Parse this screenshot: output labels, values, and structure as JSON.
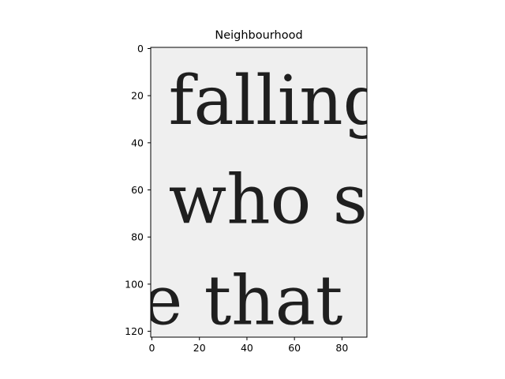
{
  "chart_data": {
    "type": "image",
    "title": "Neighbourhood",
    "xlabel": "",
    "ylabel": "",
    "image_width": 91,
    "image_height": 123,
    "xlim": [
      -0.5,
      90.5
    ],
    "ylim": [
      122.5,
      -0.5
    ],
    "y_inverted": true,
    "xticks": [
      0,
      20,
      40,
      60,
      80
    ],
    "yticks": [
      0,
      20,
      40,
      60,
      80,
      100,
      120
    ],
    "grid": false,
    "colormap": "gray",
    "background_color": "#efefef",
    "ink_color": "#1f1f1f",
    "text_lines": [
      {
        "text": "falling",
        "x": 7,
        "y": 32
      },
      {
        "text": "who s",
        "x": 7,
        "y": 74
      },
      {
        "text": "e that",
        "x": -4,
        "y": 117
      }
    ]
  }
}
